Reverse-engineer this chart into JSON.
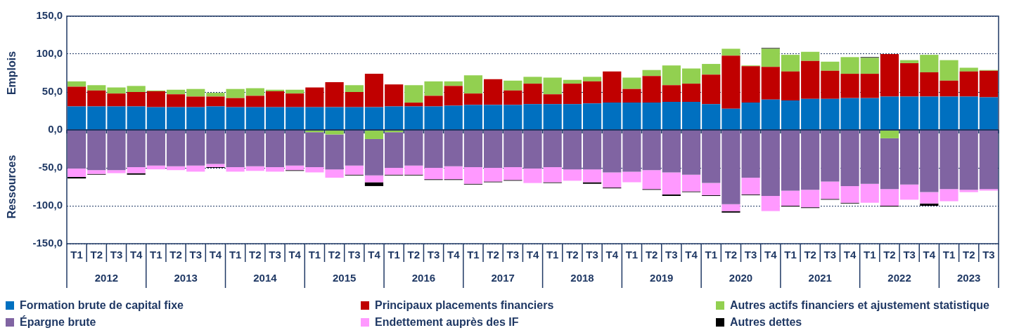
{
  "chart_data": {
    "type": "bar",
    "stacked": true,
    "categories": [
      "T1",
      "T2",
      "T3",
      "T4",
      "T1",
      "T2",
      "T3",
      "T4",
      "T1",
      "T2",
      "T3",
      "T4",
      "T1",
      "T2",
      "T3",
      "T4",
      "T1",
      "T2",
      "T3",
      "T4",
      "T1",
      "T2",
      "T3",
      "T4",
      "T1",
      "T2",
      "T3",
      "T4",
      "T1",
      "T2",
      "T3",
      "T4",
      "T1",
      "T2",
      "T3",
      "T4",
      "T1",
      "T2",
      "T3",
      "T4",
      "T1",
      "T2",
      "T3",
      "T4",
      "T1",
      "T2",
      "T3"
    ],
    "series": [
      {
        "name": "Formation brute de capital fixe",
        "color": "#0070c0",
        "values": [
          31,
          31,
          31,
          31,
          30,
          30,
          30,
          31,
          30,
          30,
          30,
          30,
          30,
          30,
          30,
          30,
          31,
          31,
          31,
          32,
          33,
          33,
          33,
          34,
          34,
          34,
          35,
          36,
          36,
          36,
          37,
          37,
          34,
          28,
          36,
          40,
          39,
          41,
          41,
          42,
          42,
          44,
          44,
          44,
          44,
          44,
          43
        ]
      },
      {
        "name": "Principaux placements financiers",
        "color": "#c00000",
        "values": [
          26,
          21,
          17,
          19,
          21,
          17,
          14,
          13,
          12,
          15,
          21,
          18,
          26,
          33,
          20,
          44,
          29,
          5,
          14,
          26,
          15,
          34,
          19,
          27,
          13,
          27,
          29,
          41,
          18,
          35,
          22,
          24,
          39,
          70,
          48,
          43,
          38,
          50,
          37,
          32,
          32,
          56,
          44,
          32,
          21,
          33,
          35
        ]
      },
      {
        "name": "Autres actifs financiers et ajustement statistique",
        "color": "#92d050",
        "values": [
          7,
          7,
          8,
          8,
          1,
          6,
          10,
          5,
          12,
          10,
          2,
          5,
          -3,
          -6,
          9,
          -12,
          -3,
          23,
          19,
          6,
          24,
          null,
          13,
          9,
          22,
          5,
          6,
          null,
          15,
          8,
          26,
          20,
          14,
          9,
          1,
          24,
          22,
          12,
          12,
          22,
          21,
          -11,
          4,
          23,
          27,
          5,
          1
        ]
      },
      {
        "name": "Épargne brute",
        "color": "#8064a2",
        "values": [
          -51,
          -53,
          -53,
          -49,
          -47,
          -48,
          -47,
          -45,
          -49,
          -48,
          -49,
          -47,
          -46,
          -46,
          -47,
          -48,
          -47,
          -47,
          -50,
          -48,
          -49,
          -50,
          -49,
          -51,
          -49,
          -52,
          -52,
          -56,
          -55,
          -53,
          -56,
          -59,
          -70,
          -98,
          -63,
          -87,
          -80,
          -79,
          -68,
          -74,
          -71,
          -67,
          -72,
          -82,
          -78,
          -79,
          -78
        ]
      },
      {
        "name": "Endettement auprès des IF",
        "color": "#ff99ff",
        "values": [
          -11,
          -5,
          -4,
          -8,
          -5,
          -5,
          -8,
          -4,
          -6,
          -6,
          -6,
          -6,
          -7,
          -11,
          -12,
          -9,
          -9,
          -12,
          -15,
          -17,
          -22,
          -18,
          -17,
          -19,
          -20,
          -15,
          -17,
          -20,
          -14,
          -25,
          -29,
          -22,
          -16,
          -9,
          -22,
          -20,
          -20,
          -23,
          -23,
          -22,
          -25,
          -22,
          -20,
          -15,
          -16,
          -3,
          -2
        ]
      },
      {
        "name": "Autres dettes",
        "color": "#000000",
        "values": [
          -2,
          -1,
          null,
          -2,
          null,
          null,
          null,
          -1,
          null,
          null,
          null,
          -1,
          null,
          null,
          -1,
          -5,
          -1,
          -1,
          -1,
          -1,
          -1,
          -1,
          -1,
          null,
          -1,
          null,
          -2,
          -1,
          null,
          -1,
          -2,
          -1,
          -1,
          -2,
          -1,
          1,
          -1,
          -1,
          -1,
          -1,
          1,
          -1,
          null,
          -3,
          null,
          null,
          null
        ]
      }
    ],
    "ylim": [
      -150,
      150
    ],
    "yticks": [
      {
        "value": 150,
        "label": "150,0"
      },
      {
        "value": 100,
        "label": "100,0"
      },
      {
        "value": 50,
        "label": "50,0"
      },
      {
        "value": 0,
        "label": "0,0"
      },
      {
        "value": -50,
        "label": "-50,0"
      },
      {
        "value": -100,
        "label": "-100,0"
      },
      {
        "value": -150,
        "label": "-150,0"
      }
    ],
    "ylabel": "Emplois",
    "ref_lines": [
      {
        "axis": "y",
        "value": 0,
        "color": "#1f3864"
      }
    ],
    "grid": "y",
    "legend": "bottom",
    "annotations": [
      "Ressources",
      "2012",
      "2013",
      "2014",
      "2015",
      "2016",
      "2017",
      "2018",
      "2019",
      "2020",
      "2021",
      "2022",
      "2023"
    ]
  }
}
